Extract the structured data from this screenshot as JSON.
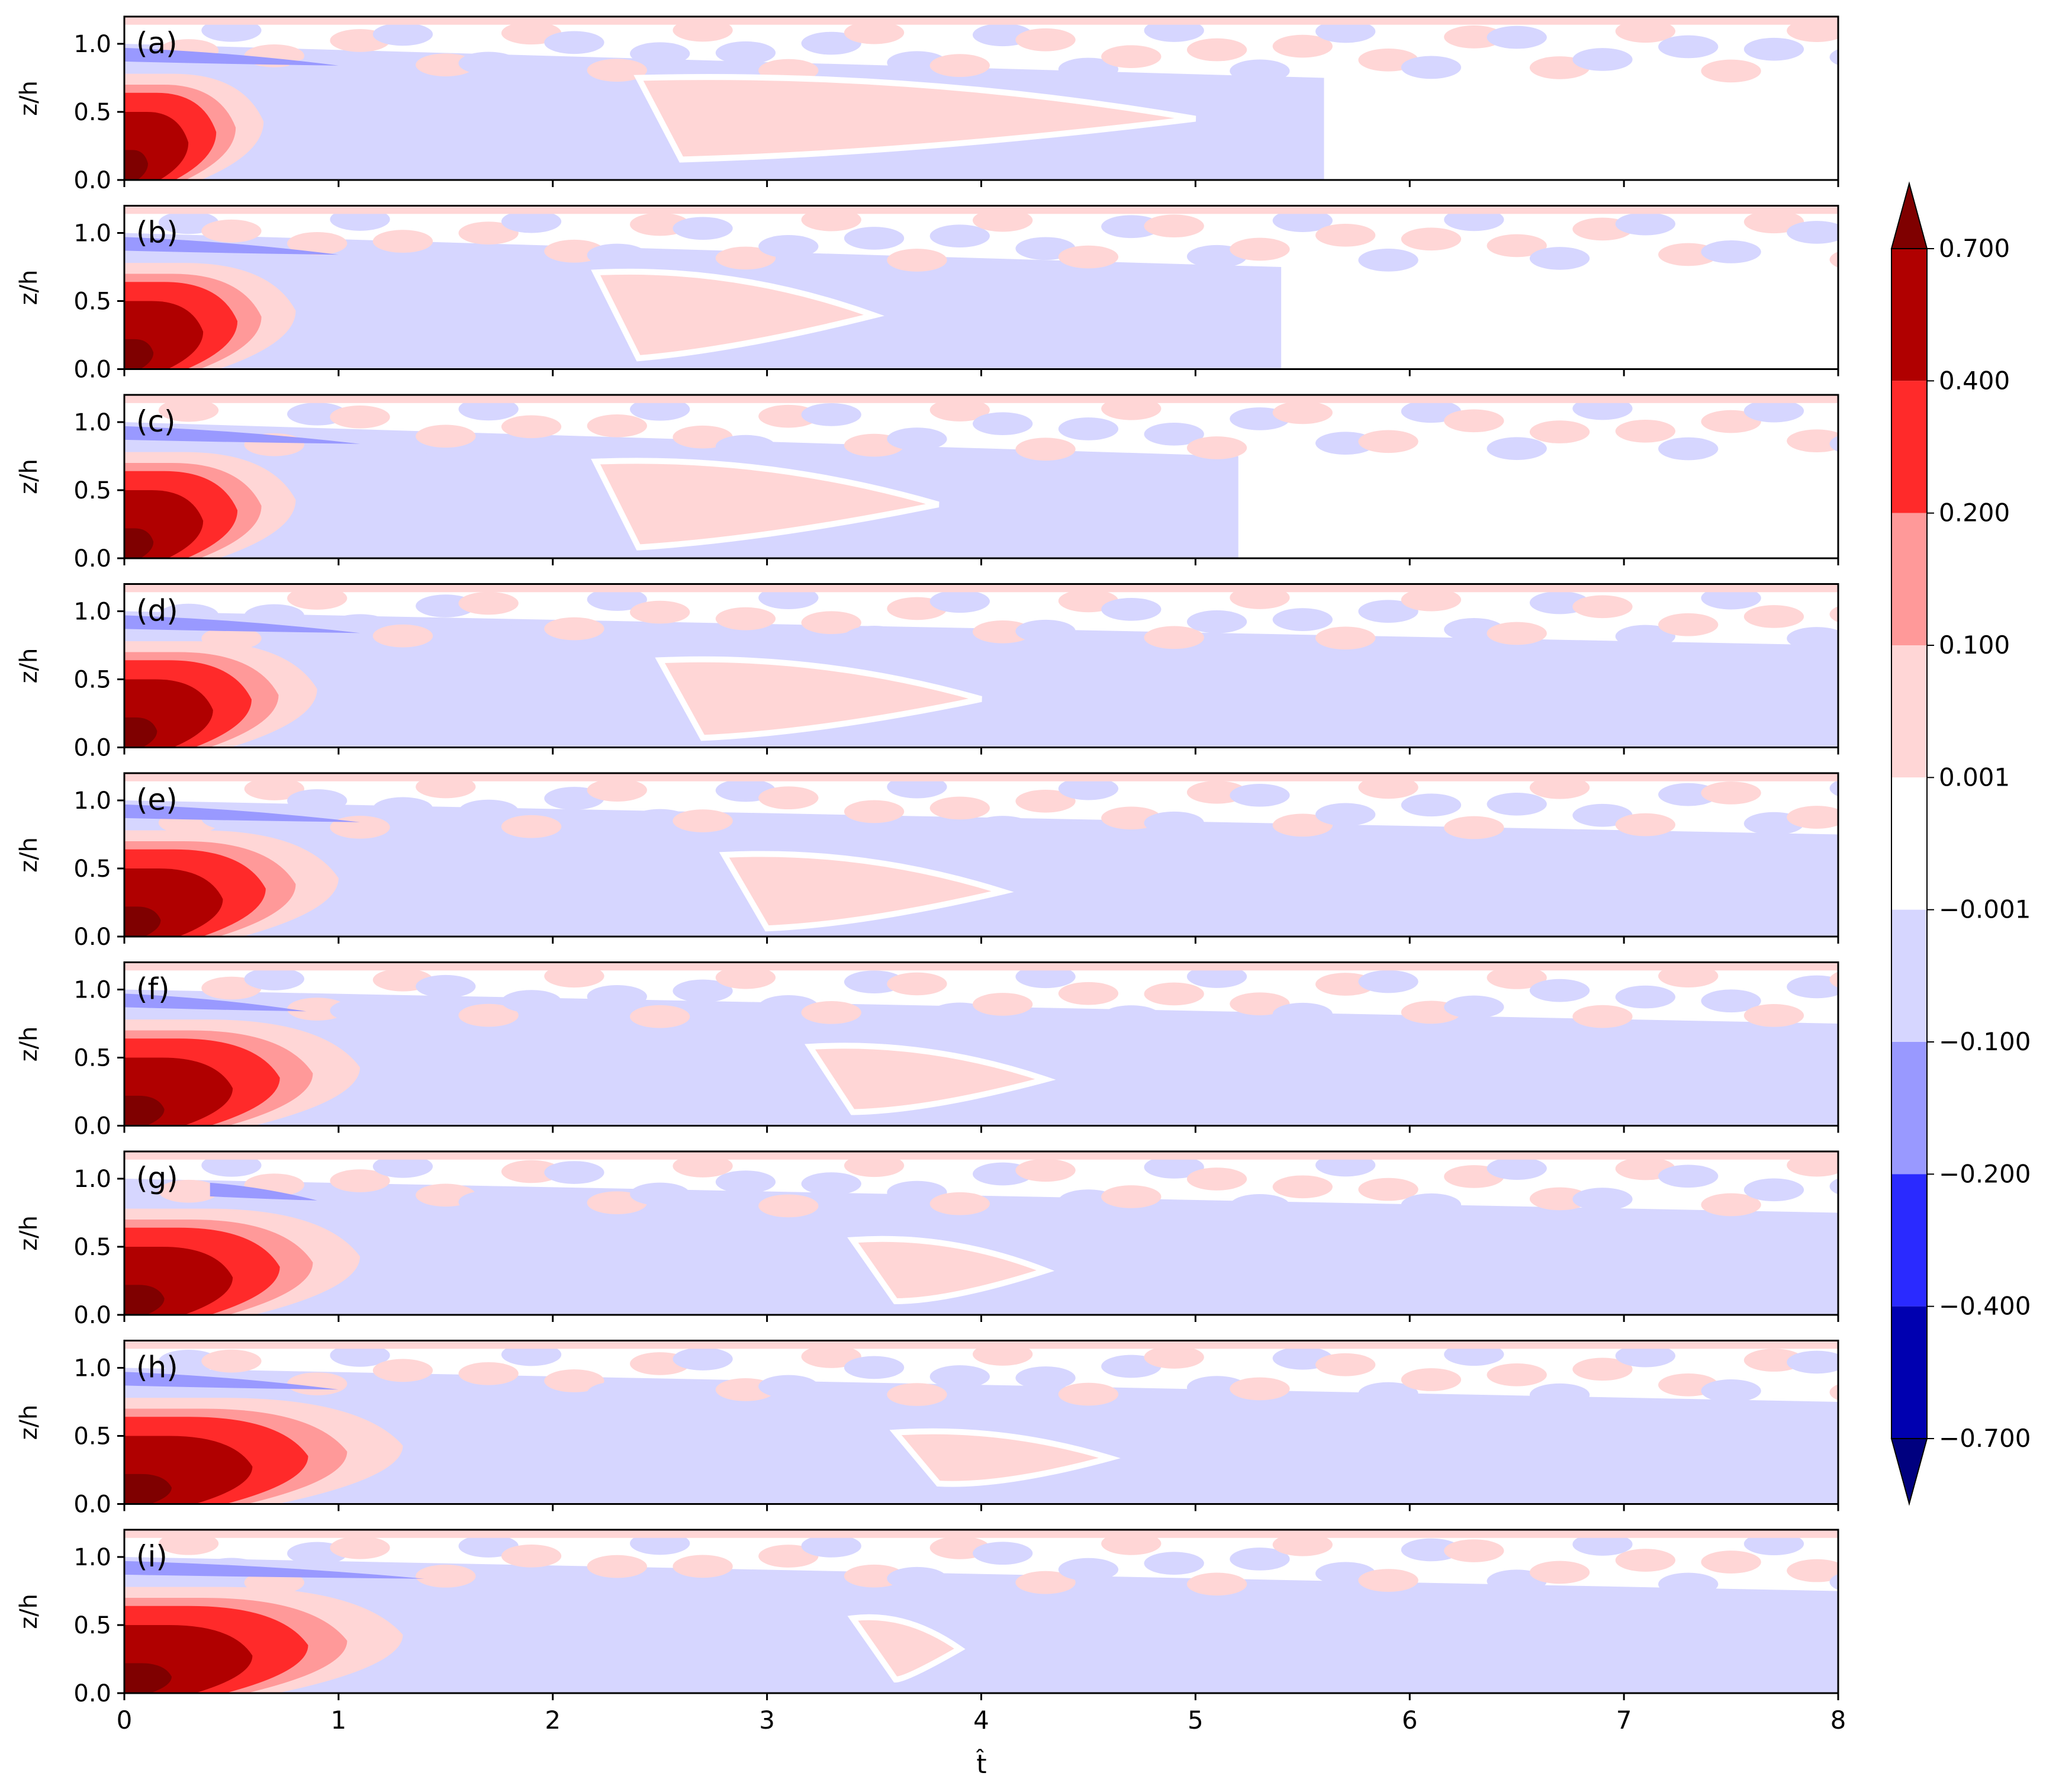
{
  "chart_data": {
    "type": "contourf",
    "description_panels": "Nine stacked filled-contour panels sharing the t-hat axis",
    "xlabel": "t̂",
    "ylabel": "z/h",
    "xlim": [
      0,
      8
    ],
    "ylim": [
      0,
      1.2
    ],
    "x_ticks": [
      "0",
      "1",
      "2",
      "3",
      "4",
      "5",
      "6",
      "7",
      "8"
    ],
    "y_ticks": [
      "0.0",
      "0.5",
      "1.0"
    ],
    "panels": [
      {
        "label": "(a)",
        "core_extent": 0.65,
        "pos_blob": [
          2.4,
          5.0,
          0.55,
          0.4
        ],
        "deep_blue": [
          0.0,
          1.0,
          0.92
        ],
        "outer_blue": 5.6
      },
      {
        "label": "(b)",
        "core_extent": 0.8,
        "pos_blob": [
          2.2,
          3.5,
          0.5,
          0.42
        ],
        "deep_blue": [
          0.0,
          1.0,
          0.92
        ],
        "outer_blue": 5.4
      },
      {
        "label": "(c)",
        "core_extent": 0.8,
        "pos_blob": [
          2.2,
          3.8,
          0.5,
          0.42
        ],
        "deep_blue": [
          0.0,
          1.1,
          0.92
        ],
        "outer_blue": 5.2
      },
      {
        "label": "(d)",
        "core_extent": 0.9,
        "pos_blob": [
          2.5,
          4.0,
          0.45,
          0.38
        ],
        "deep_blue": [
          0.0,
          1.1,
          0.92
        ],
        "outer_blue": 8.0
      },
      {
        "label": "(e)",
        "core_extent": 1.0,
        "pos_blob": [
          2.8,
          4.1,
          0.42,
          0.36
        ],
        "deep_blue": [
          0.0,
          1.1,
          0.92
        ],
        "outer_blue": 8.0
      },
      {
        "label": "(f)",
        "core_extent": 1.1,
        "pos_blob": [
          3.2,
          4.3,
          0.42,
          0.32
        ],
        "deep_blue": [
          0.0,
          0.85,
          0.92
        ],
        "outer_blue": 8.0
      },
      {
        "label": "(g)",
        "core_extent": 1.1,
        "pos_blob": [
          3.4,
          4.3,
          0.4,
          0.3
        ],
        "deep_blue": [
          0.4,
          0.9,
          0.92
        ],
        "outer_blue": 8.0
      },
      {
        "label": "(h)",
        "core_extent": 1.3,
        "pos_blob": [
          3.6,
          4.6,
          0.4,
          0.25
        ],
        "deep_blue": [
          0.0,
          1.0,
          0.92
        ],
        "outer_blue": 8.0
      },
      {
        "label": "(i)",
        "core_extent": 1.3,
        "pos_blob": [
          3.4,
          3.9,
          0.4,
          0.3
        ],
        "deep_blue": [
          0.0,
          1.4,
          0.92
        ],
        "outer_blue": 8.0
      }
    ],
    "colorbar": {
      "levels": [
        "0.700",
        "0.400",
        "0.200",
        "0.100",
        "0.001",
        "−0.001",
        "−0.100",
        "−0.200",
        "−0.400",
        "−0.700"
      ],
      "colors": [
        "#b00000",
        "#ff2a2a",
        "#ff9999",
        "#ffd6d6",
        "#ffffff",
        "#d6d6ff",
        "#9999ff",
        "#2a2aff",
        "#0000b0"
      ],
      "extend_max_color": "#7f0000",
      "extend_min_color": "#00007f"
    },
    "palette": {
      "pos_deep": "#7f0000",
      "pos_dark": "#b00000",
      "pos_mid": "#ff2a2a",
      "pos_light": "#ff9999",
      "pos_faint": "#ffd6d6",
      "neg_faint": "#d6d6ff",
      "neg_light": "#9999ff",
      "white": "#ffffff"
    }
  }
}
